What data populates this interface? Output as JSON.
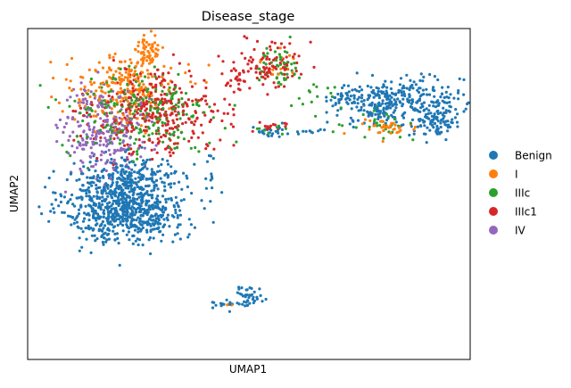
{
  "chart_data": {
    "type": "scatter",
    "title": "Disease_stage",
    "xlabel": "UMAP1",
    "ylabel": "UMAP2",
    "xlim": [
      -1.5,
      21.5
    ],
    "ylim": [
      -3.5,
      14.0
    ],
    "grid": false,
    "ticks": "none",
    "legend_position": "right",
    "point_count_estimate": 3000,
    "series": [
      {
        "name": "Benign",
        "color": "#1f77b4",
        "clusters": [
          {
            "cx": 3.6,
            "cy": 4.6,
            "sx": 1.55,
            "sy": 0.95,
            "n": 780
          },
          {
            "cx": 3.9,
            "cy": 6.3,
            "sx": 1.45,
            "sy": 0.5,
            "n": 130
          },
          {
            "cx": 17.8,
            "cy": 10.3,
            "sx": 1.7,
            "sy": 0.55,
            "n": 230
          },
          {
            "cx": 19.7,
            "cy": 9.3,
            "sx": 0.55,
            "sy": 0.55,
            "n": 110
          },
          {
            "cx": 16.8,
            "cy": 9.6,
            "sx": 0.8,
            "sy": 0.4,
            "n": 70
          },
          {
            "cx": 15.0,
            "cy": 10.3,
            "sx": 0.45,
            "sy": 0.18,
            "n": 25
          },
          {
            "cx": 11.2,
            "cy": 8.5,
            "sx": 0.8,
            "sy": 0.15,
            "n": 25
          },
          {
            "cx": 13.3,
            "cy": 8.6,
            "sx": 0.35,
            "sy": 0.07,
            "n": 8
          },
          {
            "cx": 8.8,
            "cy": -0.6,
            "sx": 0.35,
            "sy": 0.12,
            "n": 15
          },
          {
            "cx": 9.9,
            "cy": -0.2,
            "sx": 0.4,
            "sy": 0.3,
            "n": 40
          },
          {
            "cx": 8.0,
            "cy": 6.6,
            "sx": 0.15,
            "sy": 0.5,
            "n": 10
          }
        ]
      },
      {
        "name": "I",
        "color": "#ff7f0e",
        "clusters": [
          {
            "cx": 3.5,
            "cy": 10.8,
            "sx": 1.4,
            "sy": 0.9,
            "n": 230
          },
          {
            "cx": 4.7,
            "cy": 12.8,
            "sx": 0.35,
            "sy": 0.45,
            "n": 60
          },
          {
            "cx": 17.2,
            "cy": 8.8,
            "sx": 0.7,
            "sy": 0.35,
            "n": 40
          },
          {
            "cx": 11.3,
            "cy": 12.1,
            "sx": 0.6,
            "sy": 0.5,
            "n": 14
          },
          {
            "cx": 9.1,
            "cy": -0.6,
            "sx": 0.2,
            "sy": 0.05,
            "n": 4
          }
        ]
      },
      {
        "name": "IIIc",
        "color": "#2ca02c",
        "clusters": [
          {
            "cx": 4.3,
            "cy": 9.4,
            "sx": 1.9,
            "sy": 1.2,
            "n": 230
          },
          {
            "cx": 11.4,
            "cy": 12.0,
            "sx": 0.75,
            "sy": 0.6,
            "n": 50
          },
          {
            "cx": 13.8,
            "cy": 10.5,
            "sx": 0.7,
            "sy": 0.35,
            "n": 15
          },
          {
            "cx": 16.8,
            "cy": 8.9,
            "sx": 0.8,
            "sy": 0.35,
            "n": 30
          },
          {
            "cx": 11.1,
            "cy": 8.6,
            "sx": 0.5,
            "sy": 0.12,
            "n": 8
          }
        ]
      },
      {
        "name": "IIIc1",
        "color": "#d62728",
        "clusters": [
          {
            "cx": 5.2,
            "cy": 9.5,
            "sx": 1.7,
            "sy": 1.1,
            "n": 340
          },
          {
            "cx": 11.3,
            "cy": 12.2,
            "sx": 0.8,
            "sy": 0.7,
            "n": 90
          },
          {
            "cx": 9.4,
            "cy": 11.4,
            "sx": 0.25,
            "sy": 0.35,
            "n": 30
          },
          {
            "cx": 11.4,
            "cy": 8.8,
            "sx": 0.55,
            "sy": 0.15,
            "n": 14
          }
        ]
      },
      {
        "name": "IV",
        "color": "#9467bd",
        "clusters": [
          {
            "cx": 2.3,
            "cy": 8.3,
            "sx": 1.1,
            "sy": 1.0,
            "n": 200
          },
          {
            "cx": 2.2,
            "cy": 10.4,
            "sx": 0.7,
            "sy": 0.5,
            "n": 40
          }
        ]
      }
    ]
  }
}
